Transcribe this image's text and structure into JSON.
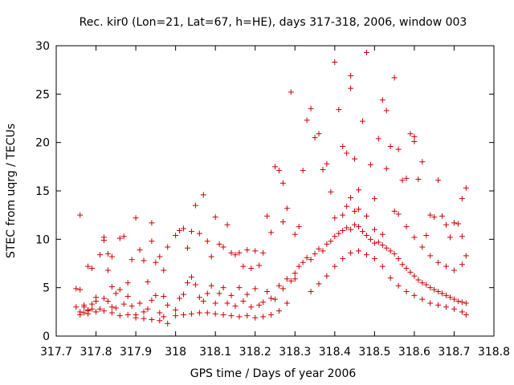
{
  "chart_data": {
    "type": "scatter",
    "title": "Rec. kir0 (Lon=21, Lat=67, h=HE), days 317-318, 2006, window 003",
    "xlabel": "GPS time / Days of year 2006",
    "ylabel": "STEC from uqrg / TECUs",
    "xlim": [
      317.7,
      318.8
    ],
    "ylim": [
      0,
      30
    ],
    "x_ticks": [
      317.7,
      317.8,
      317.9,
      318.0,
      318.1,
      318.2,
      318.3,
      318.4,
      318.5,
      318.6,
      318.7,
      318.8
    ],
    "x_tick_labels": [
      "317.7",
      "317.8",
      "317.9",
      "318",
      "318.1",
      "318.2",
      "318.3",
      "318.4",
      "318.5",
      "318.6",
      "318.7",
      "318.8"
    ],
    "y_ticks": [
      0,
      5,
      10,
      15,
      20,
      25,
      30
    ],
    "y_tick_labels": [
      "0",
      "5",
      "10",
      "15",
      "20",
      "25",
      "30"
    ],
    "marker": "plus",
    "color": "#cc0000",
    "points": [
      [
        317.76,
        12.5
      ],
      [
        317.75,
        4.9
      ],
      [
        317.76,
        4.8
      ],
      [
        317.77,
        3.2
      ],
      [
        317.77,
        3.0
      ],
      [
        317.78,
        7.2
      ],
      [
        317.79,
        7.0
      ],
      [
        317.78,
        2.6
      ],
      [
        317.79,
        2.8
      ],
      [
        317.8,
        4.0
      ],
      [
        317.81,
        8.4
      ],
      [
        317.82,
        10.2
      ],
      [
        317.82,
        9.9
      ],
      [
        317.83,
        8.5
      ],
      [
        317.84,
        8.2
      ],
      [
        317.83,
        6.8
      ],
      [
        317.84,
        5.1
      ],
      [
        317.85,
        4.4
      ],
      [
        317.86,
        10.1
      ],
      [
        317.87,
        10.3
      ],
      [
        317.88,
        5.5
      ],
      [
        317.89,
        7.9
      ],
      [
        317.9,
        12.2
      ],
      [
        317.91,
        8.9
      ],
      [
        317.92,
        7.8
      ],
      [
        317.93,
        5.6
      ],
      [
        317.94,
        11.7
      ],
      [
        317.94,
        9.8
      ],
      [
        317.95,
        7.6
      ],
      [
        317.96,
        8.2
      ],
      [
        317.97,
        6.8
      ],
      [
        317.98,
        9.2
      ],
      [
        317.97,
        4.1
      ],
      [
        317.98,
        3.2
      ],
      [
        318.0,
        10.4
      ],
      [
        318.01,
        10.9
      ],
      [
        318.02,
        11.1
      ],
      [
        318.03,
        9.1
      ],
      [
        318.04,
        10.8
      ],
      [
        318.05,
        13.5
      ],
      [
        318.06,
        10.6
      ],
      [
        318.07,
        14.6
      ],
      [
        318.08,
        9.8
      ],
      [
        318.09,
        8.2
      ],
      [
        318.1,
        12.3
      ],
      [
        318.11,
        9.5
      ],
      [
        318.12,
        9.2
      ],
      [
        318.13,
        11.5
      ],
      [
        318.14,
        8.6
      ],
      [
        318.15,
        8.4
      ],
      [
        318.16,
        8.6
      ],
      [
        318.17,
        7.2
      ],
      [
        318.18,
        8.9
      ],
      [
        318.19,
        7.0
      ],
      [
        318.2,
        8.8
      ],
      [
        318.21,
        7.3
      ],
      [
        318.22,
        8.6
      ],
      [
        318.23,
        12.4
      ],
      [
        318.24,
        10.7
      ],
      [
        318.25,
        17.5
      ],
      [
        318.26,
        17.1
      ],
      [
        318.27,
        15.8
      ],
      [
        318.27,
        11.8
      ],
      [
        318.28,
        13.2
      ],
      [
        318.29,
        25.2
      ],
      [
        318.3,
        10.5
      ],
      [
        318.31,
        11.3
      ],
      [
        318.32,
        17.1
      ],
      [
        318.33,
        22.3
      ],
      [
        318.34,
        23.5
      ],
      [
        318.35,
        20.5
      ],
      [
        318.36,
        20.9
      ],
      [
        318.37,
        17.2
      ],
      [
        318.38,
        17.8
      ],
      [
        318.39,
        14.9
      ],
      [
        318.4,
        28.3
      ],
      [
        318.41,
        23.4
      ],
      [
        318.42,
        19.6
      ],
      [
        318.43,
        18.9
      ],
      [
        318.44,
        26.9
      ],
      [
        318.44,
        25.6
      ],
      [
        318.45,
        18.3
      ],
      [
        318.46,
        15.1
      ],
      [
        318.47,
        22.2
      ],
      [
        318.48,
        29.3
      ],
      [
        318.49,
        17.7
      ],
      [
        318.5,
        14.2
      ],
      [
        318.51,
        20.4
      ],
      [
        318.52,
        24.4
      ],
      [
        318.53,
        23.3
      ],
      [
        318.53,
        17.3
      ],
      [
        318.54,
        19.6
      ],
      [
        318.55,
        26.7
      ],
      [
        318.56,
        19.3
      ],
      [
        318.57,
        16.1
      ],
      [
        318.58,
        16.3
      ],
      [
        318.59,
        20.9
      ],
      [
        318.6,
        20.6
      ],
      [
        318.6,
        20.1
      ],
      [
        318.61,
        16.2
      ],
      [
        318.62,
        18.0
      ],
      [
        318.63,
        10.4
      ],
      [
        318.64,
        12.5
      ],
      [
        318.65,
        12.3
      ],
      [
        318.66,
        16.1
      ],
      [
        318.67,
        12.4
      ],
      [
        318.68,
        11.5
      ],
      [
        318.69,
        10.2
      ],
      [
        318.7,
        11.7
      ],
      [
        318.71,
        11.6
      ],
      [
        318.72,
        14.2
      ],
      [
        318.73,
        15.3
      ],
      [
        318.72,
        10.3
      ],
      [
        318.73,
        8.3
      ],
      [
        317.75,
        3.0
      ],
      [
        317.76,
        2.5
      ],
      [
        317.77,
        2.4
      ],
      [
        317.78,
        2.7
      ],
      [
        317.79,
        3.3
      ],
      [
        317.8,
        3.6
      ],
      [
        317.81,
        2.8
      ],
      [
        317.82,
        3.9
      ],
      [
        317.83,
        3.6
      ],
      [
        317.84,
        3.0
      ],
      [
        317.85,
        2.9
      ],
      [
        317.86,
        4.8
      ],
      [
        317.87,
        3.3
      ],
      [
        317.88,
        4.1
      ],
      [
        317.89,
        3.1
      ],
      [
        317.9,
        2.2
      ],
      [
        317.91,
        3.4
      ],
      [
        317.92,
        2.5
      ],
      [
        317.93,
        2.8
      ],
      [
        317.94,
        3.7
      ],
      [
        317.95,
        4.2
      ],
      [
        317.96,
        2.4
      ],
      [
        317.97,
        2.0
      ],
      [
        317.98,
        1.3
      ],
      [
        317.76,
        2.2
      ],
      [
        317.78,
        2.3
      ],
      [
        317.8,
        2.5
      ],
      [
        317.82,
        2.6
      ],
      [
        317.84,
        2.4
      ],
      [
        317.86,
        2.1
      ],
      [
        317.88,
        2.2
      ],
      [
        317.9,
        1.9
      ],
      [
        317.92,
        1.8
      ],
      [
        317.94,
        1.7
      ],
      [
        317.96,
        1.6
      ],
      [
        318.0,
        2.7
      ],
      [
        318.01,
        3.9
      ],
      [
        318.02,
        4.3
      ],
      [
        318.03,
        5.5
      ],
      [
        318.04,
        6.1
      ],
      [
        318.05,
        5.3
      ],
      [
        318.06,
        4.0
      ],
      [
        318.07,
        3.6
      ],
      [
        318.08,
        4.4
      ],
      [
        318.09,
        5.2
      ],
      [
        318.1,
        3.4
      ],
      [
        318.11,
        4.4
      ],
      [
        318.12,
        5.0
      ],
      [
        318.13,
        3.4
      ],
      [
        318.14,
        4.2
      ],
      [
        318.15,
        3.1
      ],
      [
        318.16,
        5.0
      ],
      [
        318.17,
        3.6
      ],
      [
        318.18,
        4.3
      ],
      [
        318.19,
        3.0
      ],
      [
        318.2,
        4.9
      ],
      [
        318.21,
        3.2
      ],
      [
        318.22,
        3.5
      ],
      [
        318.23,
        4.6
      ],
      [
        318.24,
        3.9
      ],
      [
        318.25,
        3.8
      ],
      [
        318.26,
        5.2
      ],
      [
        318.27,
        4.9
      ],
      [
        318.28,
        5.9
      ],
      [
        318.29,
        5.7
      ],
      [
        318.3,
        5.9
      ],
      [
        318.0,
        2.1
      ],
      [
        318.02,
        2.2
      ],
      [
        318.04,
        2.3
      ],
      [
        318.06,
        2.4
      ],
      [
        318.08,
        2.4
      ],
      [
        318.1,
        2.3
      ],
      [
        318.12,
        2.2
      ],
      [
        318.14,
        2.1
      ],
      [
        318.16,
        2.0
      ],
      [
        318.18,
        2.1
      ],
      [
        318.2,
        1.9
      ],
      [
        318.22,
        2.0
      ],
      [
        318.24,
        2.2
      ],
      [
        318.26,
        2.6
      ],
      [
        318.28,
        3.4
      ],
      [
        318.3,
        6.5
      ],
      [
        318.31,
        7.2
      ],
      [
        318.32,
        7.6
      ],
      [
        318.33,
        8.1
      ],
      [
        318.34,
        7.9
      ],
      [
        318.35,
        8.5
      ],
      [
        318.36,
        9.0
      ],
      [
        318.37,
        8.8
      ],
      [
        318.38,
        9.5
      ],
      [
        318.39,
        9.8
      ],
      [
        318.4,
        10.3
      ],
      [
        318.41,
        10.6
      ],
      [
        318.42,
        10.9
      ],
      [
        318.43,
        11.2
      ],
      [
        318.44,
        11.0
      ],
      [
        318.45,
        11.5
      ],
      [
        318.46,
        11.3
      ],
      [
        318.47,
        10.8
      ],
      [
        318.48,
        10.4
      ],
      [
        318.49,
        10.0
      ],
      [
        318.5,
        9.6
      ],
      [
        318.51,
        9.7
      ],
      [
        318.52,
        9.4
      ],
      [
        318.53,
        9.1
      ],
      [
        318.54,
        8.8
      ],
      [
        318.55,
        8.5
      ],
      [
        318.56,
        8.0
      ],
      [
        318.57,
        7.4
      ],
      [
        318.58,
        7.0
      ],
      [
        318.59,
        6.6
      ],
      [
        318.6,
        6.2
      ],
      [
        318.61,
        5.8
      ],
      [
        318.62,
        5.5
      ],
      [
        318.63,
        5.3
      ],
      [
        318.64,
        5.0
      ],
      [
        318.65,
        4.8
      ],
      [
        318.66,
        4.6
      ],
      [
        318.67,
        4.4
      ],
      [
        318.68,
        4.2
      ],
      [
        318.69,
        4.0
      ],
      [
        318.7,
        3.8
      ],
      [
        318.71,
        3.6
      ],
      [
        318.72,
        3.5
      ],
      [
        318.73,
        3.4
      ],
      [
        318.34,
        4.6
      ],
      [
        318.36,
        5.4
      ],
      [
        318.38,
        6.2
      ],
      [
        318.4,
        7.2
      ],
      [
        318.42,
        8.0
      ],
      [
        318.44,
        8.6
      ],
      [
        318.46,
        8.8
      ],
      [
        318.48,
        8.4
      ],
      [
        318.5,
        8.0
      ],
      [
        318.52,
        7.2
      ],
      [
        318.54,
        6.0
      ],
      [
        318.56,
        5.2
      ],
      [
        318.58,
        4.6
      ],
      [
        318.6,
        4.2
      ],
      [
        318.62,
        3.8
      ],
      [
        318.64,
        3.4
      ],
      [
        318.66,
        3.2
      ],
      [
        318.68,
        3.0
      ],
      [
        318.7,
        2.8
      ],
      [
        318.72,
        2.5
      ],
      [
        318.73,
        2.2
      ],
      [
        318.4,
        12.2
      ],
      [
        318.42,
        12.5
      ],
      [
        318.43,
        13.4
      ],
      [
        318.44,
        14.3
      ],
      [
        318.45,
        12.9
      ],
      [
        318.46,
        13.1
      ],
      [
        318.48,
        12.4
      ],
      [
        318.5,
        11.0
      ],
      [
        318.52,
        10.5
      ],
      [
        318.55,
        12.9
      ],
      [
        318.56,
        12.6
      ],
      [
        318.58,
        11.3
      ],
      [
        318.6,
        10.2
      ],
      [
        318.62,
        9.2
      ],
      [
        318.64,
        8.3
      ],
      [
        318.66,
        7.6
      ],
      [
        318.68,
        7.2
      ],
      [
        318.7,
        6.8
      ],
      [
        318.72,
        7.4
      ]
    ]
  }
}
